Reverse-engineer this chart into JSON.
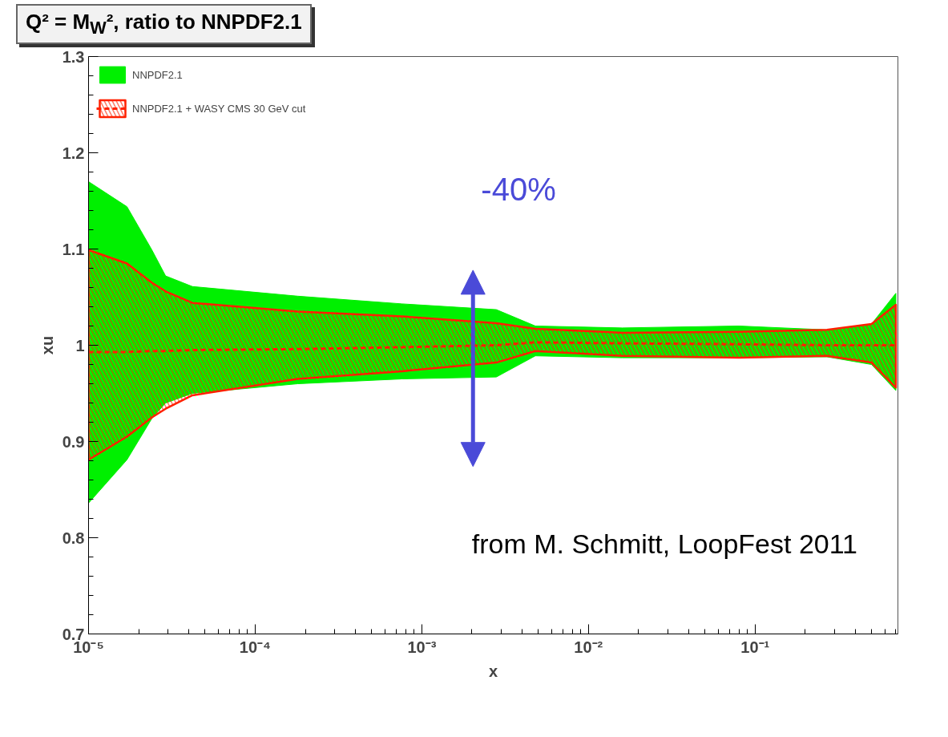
{
  "chart_data": {
    "type": "line",
    "title": "Q² = M$_{W}$², ratio to NNPDF2.1",
    "xlabel": "x",
    "ylabel": "xu",
    "log": "x",
    "x": [
      1e-05,
      1.7e-05,
      2.4e-05,
      2.9e-05,
      4.2e-05,
      0.00018,
      0.00076,
      0.0028,
      0.0048,
      0.016,
      0.08,
      0.27,
      0.5,
      0.7
    ],
    "series": [
      {
        "name": "NNPDF2.1",
        "type": "area",
        "color": "#00f000",
        "values": [
          null,
          null,
          null,
          null,
          null,
          null,
          null,
          null,
          null,
          null,
          null,
          null,
          null,
          null
        ],
        "lower": [
          0.836,
          0.881,
          0.924,
          0.94,
          0.95,
          0.96,
          0.965,
          0.967,
          0.989,
          0.987,
          0.987,
          0.988,
          0.98,
          0.953
        ],
        "upper": [
          1.17,
          1.144,
          1.099,
          1.072,
          1.061,
          1.051,
          1.043,
          1.037,
          1.02,
          1.018,
          1.02,
          1.016,
          1.022,
          1.054
        ]
      },
      {
        "name": "NNPDF2.1 + WASY CMS 30 GeV cut",
        "color": "#ff2000",
        "line_style": "dashed",
        "values": [
          0.993,
          0.993,
          0.994,
          0.994,
          0.995,
          0.996,
          0.998,
          1.0,
          1.003,
          1.002,
          1.001,
          1.0,
          1.0,
          1.0
        ],
        "lower": [
          0.881,
          0.905,
          0.925,
          0.934,
          0.948,
          0.965,
          0.973,
          0.982,
          0.994,
          0.989,
          0.987,
          0.989,
          0.982,
          0.956
        ],
        "upper": [
          1.099,
          1.085,
          1.065,
          1.056,
          1.044,
          1.035,
          1.03,
          1.023,
          1.017,
          1.013,
          1.014,
          1.016,
          1.022,
          1.042
        ]
      }
    ],
    "xlim": [
      1e-05,
      0.72
    ],
    "xticks": [
      {
        "value": 1e-05,
        "label": "10⁻⁵"
      },
      {
        "value": 0.0001,
        "label": "10⁻⁴"
      },
      {
        "value": 0.001,
        "label": "10⁻³"
      },
      {
        "value": 0.01,
        "label": "10⁻²"
      },
      {
        "value": 0.1,
        "label": "10⁻¹"
      }
    ],
    "ylim": [
      0.7,
      1.3
    ],
    "yticks": [
      {
        "value": 0.7,
        "label": "0.7"
      },
      {
        "value": 0.8,
        "label": "0.8"
      },
      {
        "value": 0.9,
        "label": "0.9"
      },
      {
        "value": 1.0,
        "label": "1"
      },
      {
        "value": 1.1,
        "label": "1.1"
      },
      {
        "value": 1.2,
        "label": "1.2"
      },
      {
        "value": 1.3,
        "label": "1.3"
      }
    ],
    "grid": false,
    "legend": "top left",
    "annotations": [
      "-40%",
      "from M. Schmitt, LoopFest 2011"
    ]
  }
}
